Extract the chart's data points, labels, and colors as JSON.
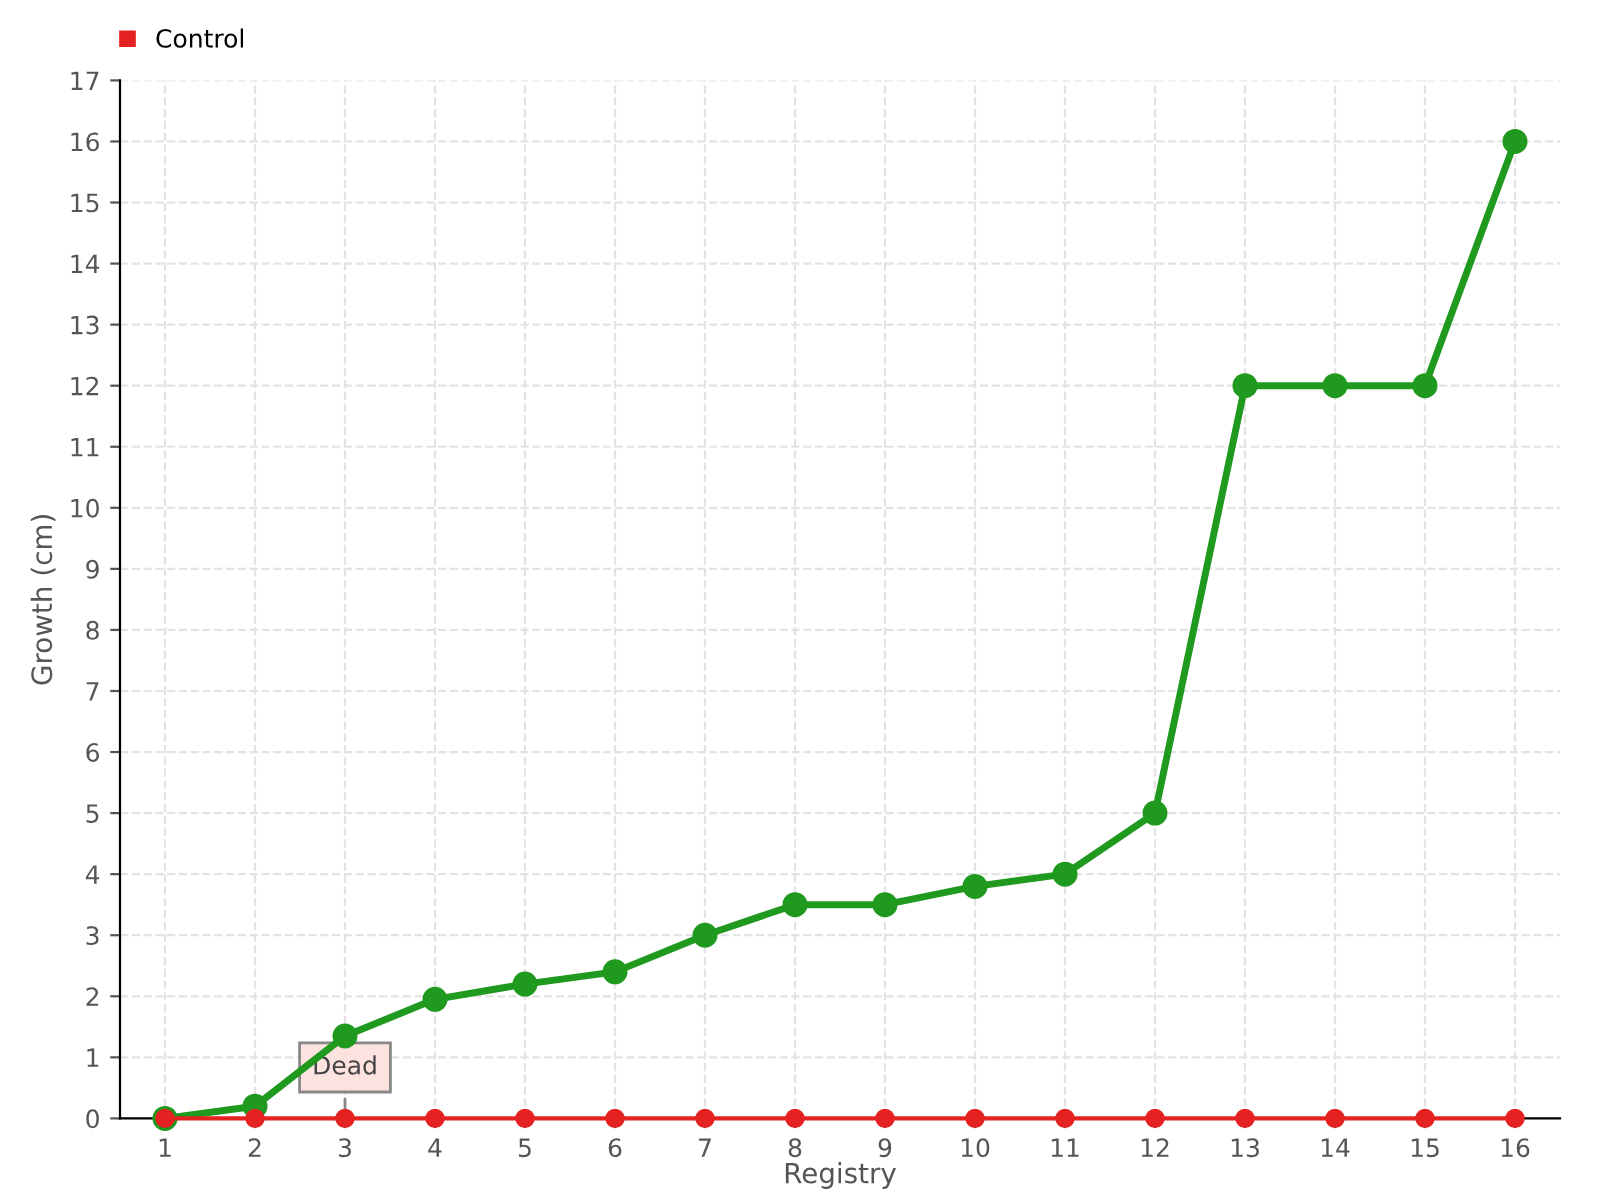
{
  "chart_data": {
    "type": "line",
    "xlabel": "Registry",
    "ylabel": "Growth (cm)",
    "categories": [
      "1",
      "2",
      "3",
      "4",
      "5",
      "6",
      "7",
      "8",
      "9",
      "10",
      "11",
      "12",
      "13",
      "14",
      "15",
      "16"
    ],
    "series": [
      {
        "color": "#1f9a1f",
        "values": [
          0,
          0.2,
          1.35,
          1.95,
          2.2,
          2.4,
          3.0,
          3.5,
          3.5,
          3.8,
          4.0,
          5.0,
          12,
          12,
          12,
          16
        ]
      },
      {
        "name": "Control",
        "color": "#e52222",
        "values": [
          0,
          0,
          0,
          0,
          0,
          0,
          0,
          0,
          0,
          0,
          0,
          0,
          0,
          0,
          0,
          0
        ]
      }
    ],
    "annotations": [
      {
        "text": "Dead",
        "x": "3",
        "y": 0
      }
    ],
    "ylim": [
      0,
      17
    ],
    "yticks": [
      0,
      1,
      2,
      3,
      4,
      5,
      6,
      7,
      8,
      9,
      10,
      11,
      12,
      13,
      14,
      15,
      16,
      17
    ],
    "grid": true,
    "legend": "top left",
    "marker": "circle",
    "line_style": "solid"
  }
}
